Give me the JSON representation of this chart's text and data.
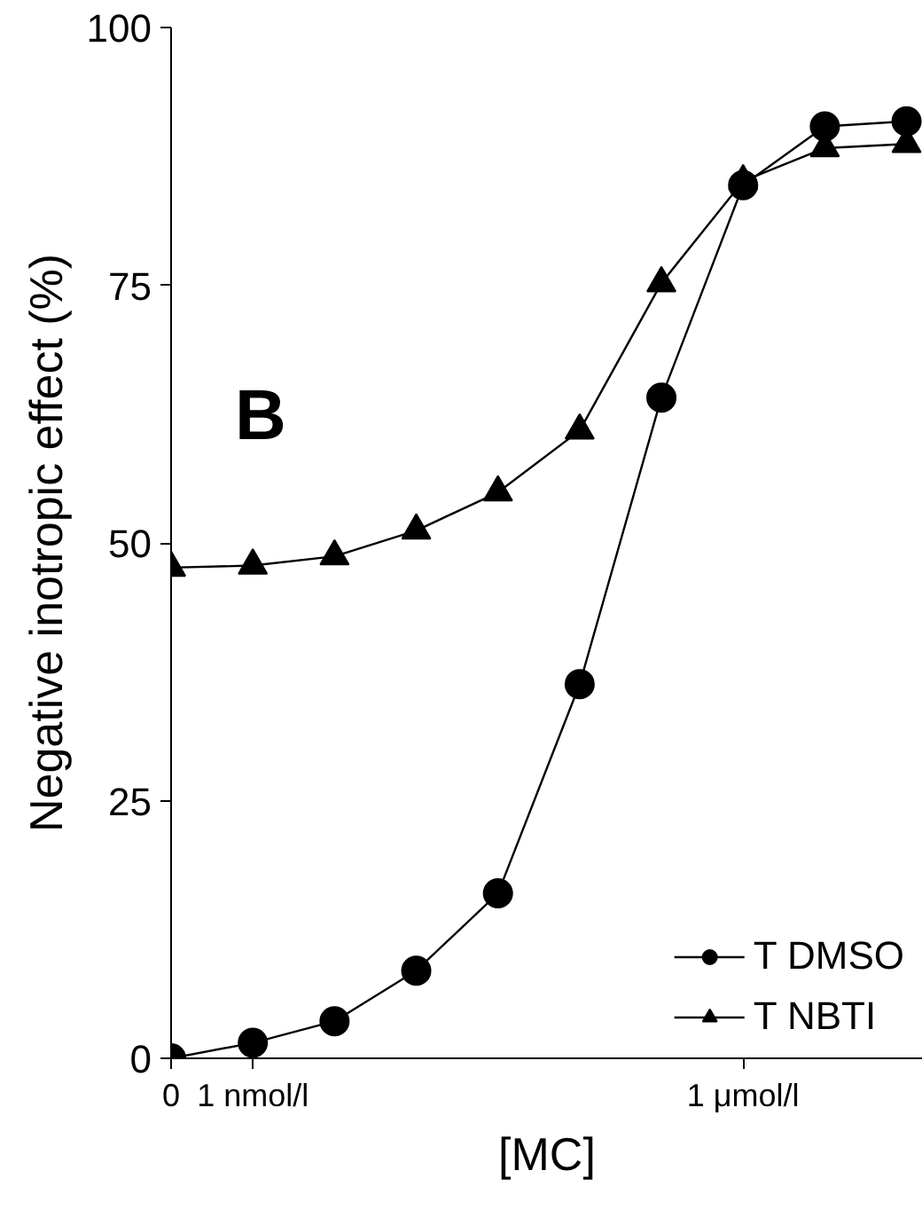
{
  "chart_data": {
    "type": "line",
    "xlabel": "[MC]",
    "ylabel": "Negative inotropic effect (%)",
    "annotations": [
      "B"
    ],
    "categories": [
      "0",
      "1 nmol/l",
      null,
      null,
      null,
      null,
      null,
      "1 μmol/l",
      null,
      null
    ],
    "series": [
      {
        "name": "T DMSO",
        "color": "#000000",
        "marker": "circle",
        "values": [
          0,
          1.5,
          3.6,
          8.5,
          16.0,
          36.3,
          64.1,
          84.7,
          90.4,
          90.9
        ]
      },
      {
        "name": "T NBTI",
        "color": "#000000",
        "marker": "triangle",
        "values": [
          47.6,
          47.8,
          48.7,
          51.2,
          54.9,
          60.9,
          75.2,
          85.1,
          88.3,
          88.7
        ]
      }
    ],
    "ylim": [
      0,
      100
    ],
    "yticks": [
      0,
      25,
      50,
      75,
      100
    ],
    "grid": false,
    "legend": "bottom right",
    "line_style": "solid"
  }
}
